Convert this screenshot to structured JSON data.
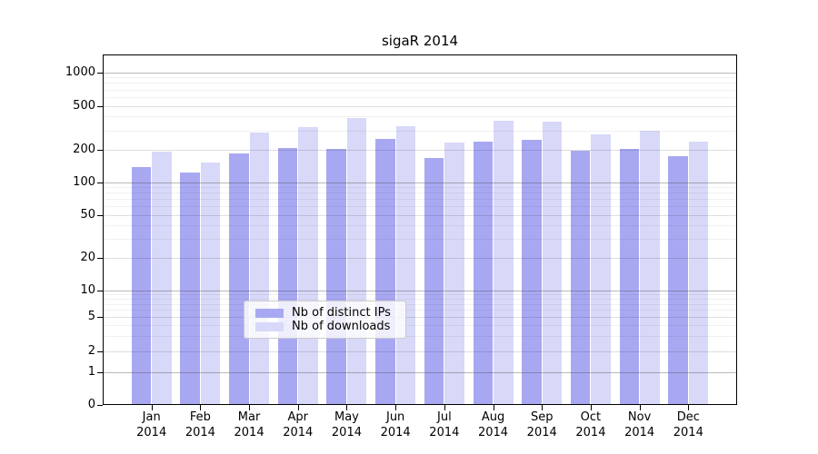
{
  "chart_data": {
    "type": "bar",
    "title": "sigaR 2014",
    "x_year": "2014",
    "categories": [
      "Jan",
      "Feb",
      "Mar",
      "Apr",
      "May",
      "Jun",
      "Jul",
      "Aug",
      "Sep",
      "Oct",
      "Nov",
      "Dec"
    ],
    "series": [
      {
        "name": "Nb of distinct IPs",
        "color": "#a8a8f2",
        "values": [
          138,
          124,
          184,
          208,
          203,
          252,
          168,
          236,
          246,
          198,
          204,
          174
        ]
      },
      {
        "name": "Nb of downloads",
        "color": "#d8d8f8",
        "values": [
          193,
          153,
          288,
          319,
          388,
          327,
          232,
          365,
          362,
          278,
          296,
          236
        ]
      }
    ],
    "y_tick_labels": [
      "0",
      "1",
      "2",
      "5",
      "10",
      "20",
      "50",
      "100",
      "200",
      "500",
      "1000"
    ],
    "y_scale": "log",
    "ylim": [
      0,
      1500
    ],
    "grid": true,
    "legend": {
      "entries": [
        "Nb of distinct IPs",
        "Nb of downloads"
      ],
      "position": "lower center"
    }
  }
}
